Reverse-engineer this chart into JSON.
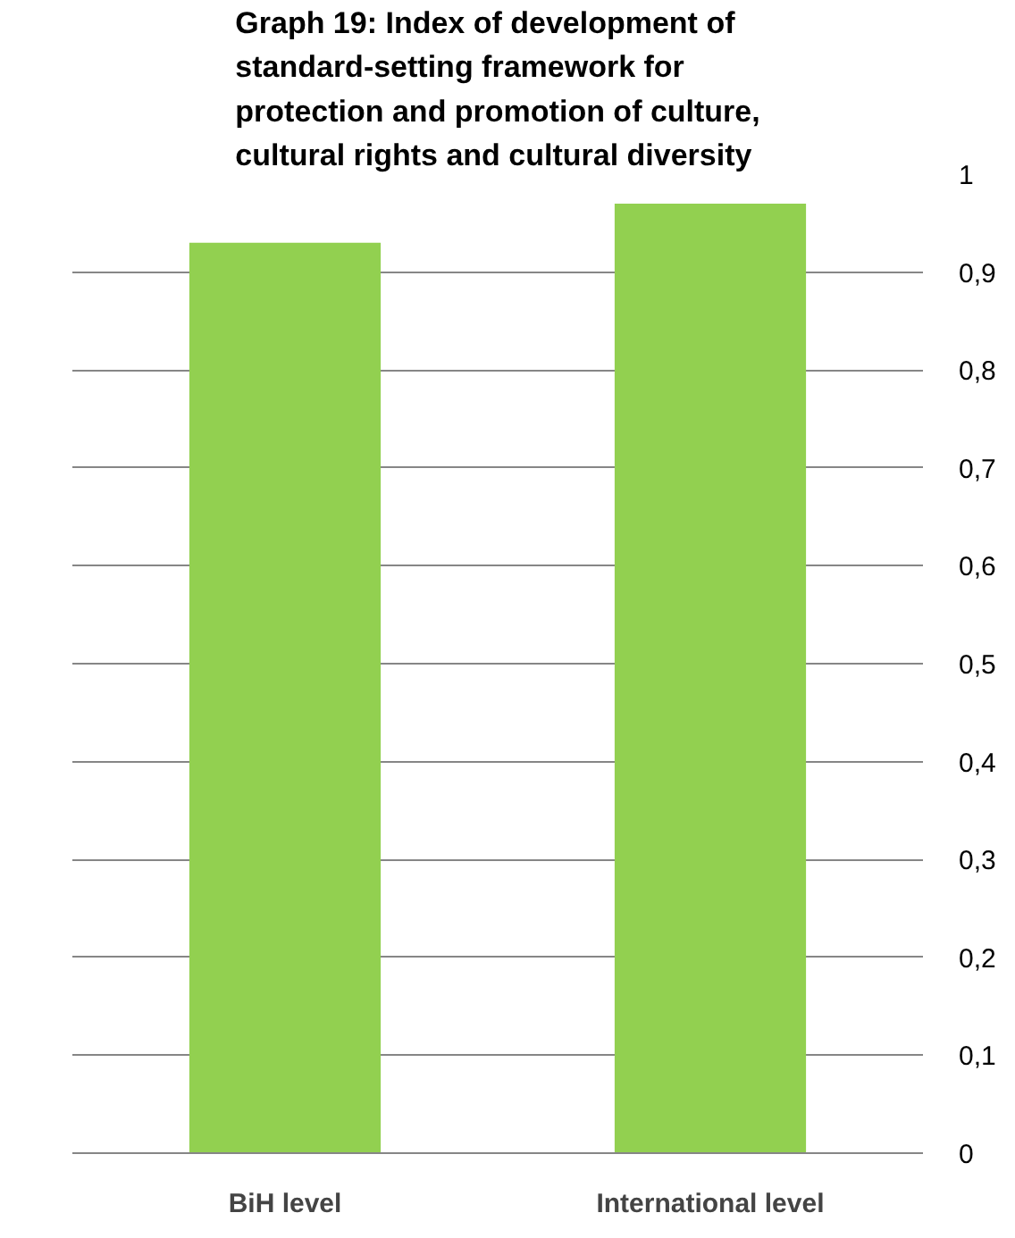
{
  "chart_data": {
    "type": "bar",
    "title": "Graph 19: Index of development of standard-setting framework for protection and promotion of culture, cultural rights and cultural diversity",
    "categories": [
      "BiH level",
      "International level"
    ],
    "values": [
      0.93,
      0.97
    ],
    "color": "#92d050",
    "ylim": [
      0,
      1
    ],
    "yticks": [
      {
        "value": 0,
        "label": "0"
      },
      {
        "value": 0.1,
        "label": "0,1"
      },
      {
        "value": 0.2,
        "label": "0,2"
      },
      {
        "value": 0.3,
        "label": "0,3"
      },
      {
        "value": 0.4,
        "label": "0,4"
      },
      {
        "value": 0.5,
        "label": "0,5"
      },
      {
        "value": 0.6,
        "label": "0,6"
      },
      {
        "value": 0.7,
        "label": "0,7"
      },
      {
        "value": 0.8,
        "label": "0,8"
      },
      {
        "value": 0.9,
        "label": "0,9"
      },
      {
        "value": 1,
        "label": "1"
      }
    ],
    "grid": "y"
  }
}
